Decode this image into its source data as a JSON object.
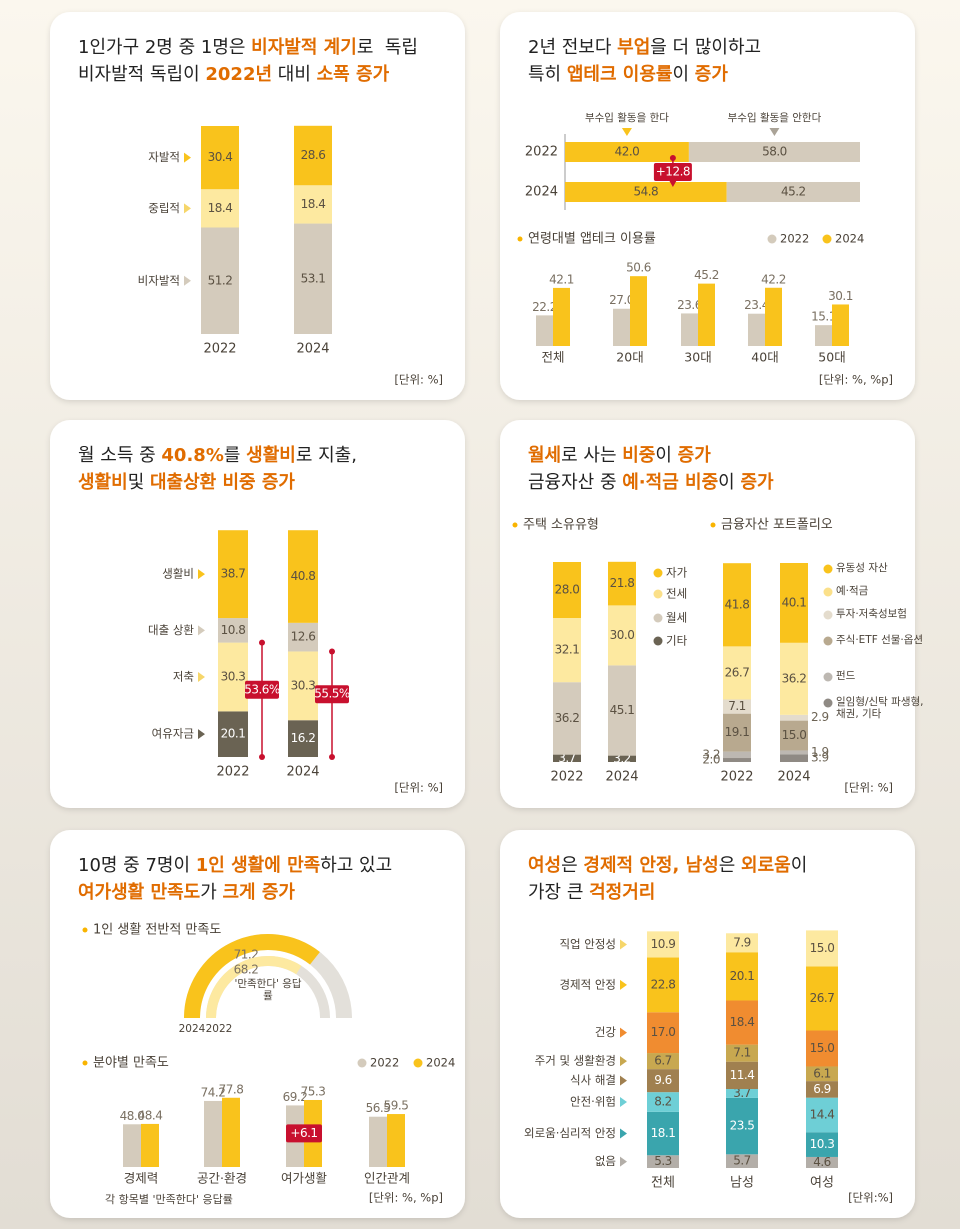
{
  "panels": [
    {
      "title": [
        [
          {
            "text": "1인가구 2명 중 1명은 "
          },
          {
            "text": "비자발적 계기",
            "accent": true
          },
          {
            "text": "로  독립"
          }
        ],
        [
          {
            "text": "비자발적 독립이 "
          },
          {
            "text": "2022년",
            "accent": true
          },
          {
            "text": " 대비 "
          },
          {
            "text": "소폭 증가",
            "accent": true
          }
        ]
      ],
      "unit": "[단위: %]",
      "charts": [
        {
          "type": "stacked_bar",
          "categories": [
            "2022",
            "2024"
          ],
          "series": [
            {
              "name": "비자발적",
              "color": "#d4cbbc",
              "values": [
                51.2,
                53.1
              ]
            },
            {
              "name": "중립적",
              "color": "#fde9a0",
              "values": [
                18.4,
                18.4
              ]
            },
            {
              "name": "자발적",
              "color": "#f9c31c",
              "values": [
                30.4,
                28.6
              ]
            }
          ]
        }
      ]
    },
    {
      "title": [
        [
          {
            "text": "2년 전보다 "
          },
          {
            "text": "부업",
            "accent": true
          },
          {
            "text": "을 더 많이하고"
          }
        ],
        [
          {
            "text": "특히 "
          },
          {
            "text": "앱테크 이용률",
            "accent": true
          },
          {
            "text": "이 "
          },
          {
            "text": "증가",
            "accent": true
          }
        ]
      ],
      "unit": "[단위: %, %p]",
      "charts": [
        {
          "type": "horizontal_stacked_bar",
          "categories": [
            "2022",
            "2024"
          ],
          "annotation": "+12.8",
          "series": [
            {
              "name": "부수입 활동을 한다",
              "color": "#f9c31c",
              "values": [
                42.0,
                54.8
              ],
              "value_labels": [
                "42.0",
                "54.8"
              ]
            },
            {
              "name": "부수입 활동을 안한다",
              "color": "#d4cbbc",
              "values": [
                58.0,
                45.2
              ],
              "value_labels": [
                "58.0",
                "45.2"
              ]
            }
          ]
        },
        {
          "type": "grouped_bar",
          "title": "연령대별 앱테크 이용률",
          "categories": [
            "전체",
            "20대",
            "30대",
            "40대",
            "50대"
          ],
          "series": [
            {
              "name": "2022",
              "color": "#d4cbbc",
              "values": [
                22.2,
                27.0,
                23.6,
                23.4,
                15.1
              ],
              "value_labels": [
                "22.2",
                "27.0",
                "23.6",
                "23.4",
                "15.1"
              ]
            },
            {
              "name": "2024",
              "color": "#f9c31c",
              "values": [
                42.1,
                50.6,
                45.2,
                42.2,
                30.1
              ]
            }
          ]
        }
      ]
    },
    {
      "title": [
        [
          {
            "text": "월 소득 중 "
          },
          {
            "text": "40.8%",
            "accent": true
          },
          {
            "text": "를 "
          },
          {
            "text": "생활비",
            "accent": true
          },
          {
            "text": "로 지출,"
          }
        ],
        [
          {
            "text": "생활비",
            "accent": true
          },
          {
            "text": "및 "
          },
          {
            "text": "대출상환 비중 증가",
            "accent": true
          }
        ]
      ],
      "unit": "[단위: %]",
      "charts": [
        {
          "type": "stacked_bar",
          "categories": [
            "2022",
            "2024"
          ],
          "annotations": [
            "53.6%",
            "55.5%"
          ],
          "series": [
            {
              "name": "여유자금",
              "color": "#6a6353",
              "values": [
                20.1,
                16.2
              ]
            },
            {
              "name": "저축",
              "color": "#fde9a0",
              "values": [
                30.3,
                30.3
              ]
            },
            {
              "name": "대출 상환",
              "color": "#d4cbbc",
              "values": [
                10.8,
                12.6
              ]
            },
            {
              "name": "생활비",
              "color": "#f9c31c",
              "values": [
                38.7,
                40.8
              ]
            }
          ]
        }
      ]
    },
    {
      "title": [
        [
          {
            "text": "월세",
            "accent": true
          },
          {
            "text": "로 사는 "
          },
          {
            "text": "비중",
            "accent": true
          },
          {
            "text": "이 "
          },
          {
            "text": "증가",
            "accent": true
          }
        ],
        [
          {
            "text": "금융자산 중 "
          },
          {
            "text": "예·적금 비중",
            "accent": true
          },
          {
            "text": "이 "
          },
          {
            "text": "증가",
            "accent": true
          }
        ]
      ],
      "unit": "[단위: %]",
      "charts": [
        {
          "type": "stacked_bar",
          "title": "주택 소유유형",
          "categories": [
            "2022",
            "2024"
          ],
          "series": [
            {
              "name": "기타",
              "color": "#6a6353",
              "values": [
                3.7,
                3.2
              ]
            },
            {
              "name": "월세",
              "color": "#d4cbbc",
              "values": [
                36.2,
                45.1
              ]
            },
            {
              "name": "전세",
              "color": "#fde9a0",
              "values": [
                32.1,
                30.0
              ],
              "value_labels": [
                "32.1",
                "30.0"
              ]
            },
            {
              "name": "자가",
              "color": "#f9c31c",
              "values": [
                28.0,
                21.8
              ],
              "value_labels": [
                "28.0",
                "21.8"
              ]
            }
          ]
        },
        {
          "type": "stacked_bar",
          "title": "금융자산 포트폴리오",
          "categories": [
            "2022",
            "2024"
          ],
          "series": [
            {
              "name": "일임형/신탁 파생형, 채권, 기타",
              "color": "#8f8a84",
              "values": [
                2.0,
                3.9
              ],
              "value_labels": [
                "2.0",
                "3.9"
              ]
            },
            {
              "name": "펀드",
              "color": "#bdb8b2",
              "values": [
                3.2,
                1.9
              ]
            },
            {
              "name": "주식·ETF 선물·옵션",
              "color": "#b8a98f",
              "values": [
                19.1,
                15.0
              ],
              "value_labels": [
                "19.1",
                "15.0"
              ]
            },
            {
              "name": "투자·저축성보험",
              "color": "#e4dccd",
              "values": [
                7.1,
                2.9
              ]
            },
            {
              "name": "예·적금",
              "color": "#fde9a0",
              "values": [
                26.7,
                36.2
              ]
            },
            {
              "name": "유동성 자산",
              "color": "#f9c31c",
              "values": [
                41.8,
                40.1
              ]
            }
          ]
        }
      ]
    },
    {
      "title": [
        [
          {
            "text": "10명 중 7명이 "
          },
          {
            "text": "1인 생활에 만족",
            "accent": true
          },
          {
            "text": "하고 있고"
          }
        ],
        [
          {
            "text": "여가생활 만족도",
            "accent": true
          },
          {
            "text": "가 "
          },
          {
            "text": "크게 증가",
            "accent": true
          }
        ]
      ],
      "unit": "[단위: %, %p]",
      "note": "각 항목별 '만족한다' 응답률",
      "charts": [
        {
          "type": "gauge",
          "title": "1인 생활 전반적 만족도",
          "label": "'만족한다' 응답률",
          "series": [
            {
              "name": "2024",
              "color": "#f9c31c",
              "value": 71.2
            },
            {
              "name": "2022",
              "color": "#fde9a0",
              "value": 68.2
            }
          ]
        },
        {
          "type": "grouped_bar",
          "title": "분야별 만족도",
          "categories": [
            "경제력",
            "공간·환경",
            "여가생활",
            "인간관계"
          ],
          "annotations": [
            null,
            null,
            "+6.1",
            null
          ],
          "series": [
            {
              "name": "2022",
              "color": "#d4cbbc",
              "values": [
                48.0,
                74.2,
                69.2,
                56.5
              ],
              "value_labels": [
                "48.0",
                "74.2",
                "69.2",
                "56.5"
              ]
            },
            {
              "name": "2024",
              "color": "#f9c31c",
              "values": [
                48.4,
                77.8,
                75.3,
                59.5
              ]
            }
          ]
        }
      ]
    },
    {
      "title": [
        [
          {
            "text": "여성",
            "accent": true
          },
          {
            "text": "은 "
          },
          {
            "text": "경제적 안정, 남성",
            "accent": true
          },
          {
            "text": "은 "
          },
          {
            "text": "외로움",
            "accent": true
          },
          {
            "text": "이"
          }
        ],
        [
          {
            "text": "가장 큰 "
          },
          {
            "text": "걱정거리",
            "accent": true
          }
        ]
      ],
      "unit": "[단위:%]",
      "charts": [
        {
          "type": "stacked_bar",
          "categories": [
            "전체",
            "남성",
            "여성"
          ],
          "series": [
            {
              "name": "없음",
              "color": "#b3aea8",
              "values": [
                5.3,
                5.7,
                4.6
              ]
            },
            {
              "name": "외로움·심리적 안정",
              "color": "#3aa5ad",
              "values": [
                18.1,
                23.5,
                10.3
              ]
            },
            {
              "name": "안전·위험",
              "color": "#6ecfd6",
              "values": [
                8.2,
                3.7,
                14.4
              ]
            },
            {
              "name": "식사 해결",
              "color": "#a08050",
              "values": [
                9.6,
                11.4,
                6.9
              ]
            },
            {
              "name": "주거 및 생활환경",
              "color": "#c8a850",
              "values": [
                6.7,
                7.1,
                6.1
              ]
            },
            {
              "name": "건강",
              "color": "#f08c30",
              "values": [
                17.0,
                18.4,
                15.0
              ],
              "value_labels": [
                "17.0",
                "18.4",
                "15.0"
              ]
            },
            {
              "name": "경제적 안정",
              "color": "#f9c31c",
              "values": [
                22.8,
                20.1,
                26.7
              ]
            },
            {
              "name": "직업 안정성",
              "color": "#fde9a0",
              "values": [
                10.9,
                7.9,
                15.0
              ],
              "value_labels": [
                "10.9",
                "7.9",
                "15.0"
              ]
            }
          ]
        }
      ]
    }
  ]
}
